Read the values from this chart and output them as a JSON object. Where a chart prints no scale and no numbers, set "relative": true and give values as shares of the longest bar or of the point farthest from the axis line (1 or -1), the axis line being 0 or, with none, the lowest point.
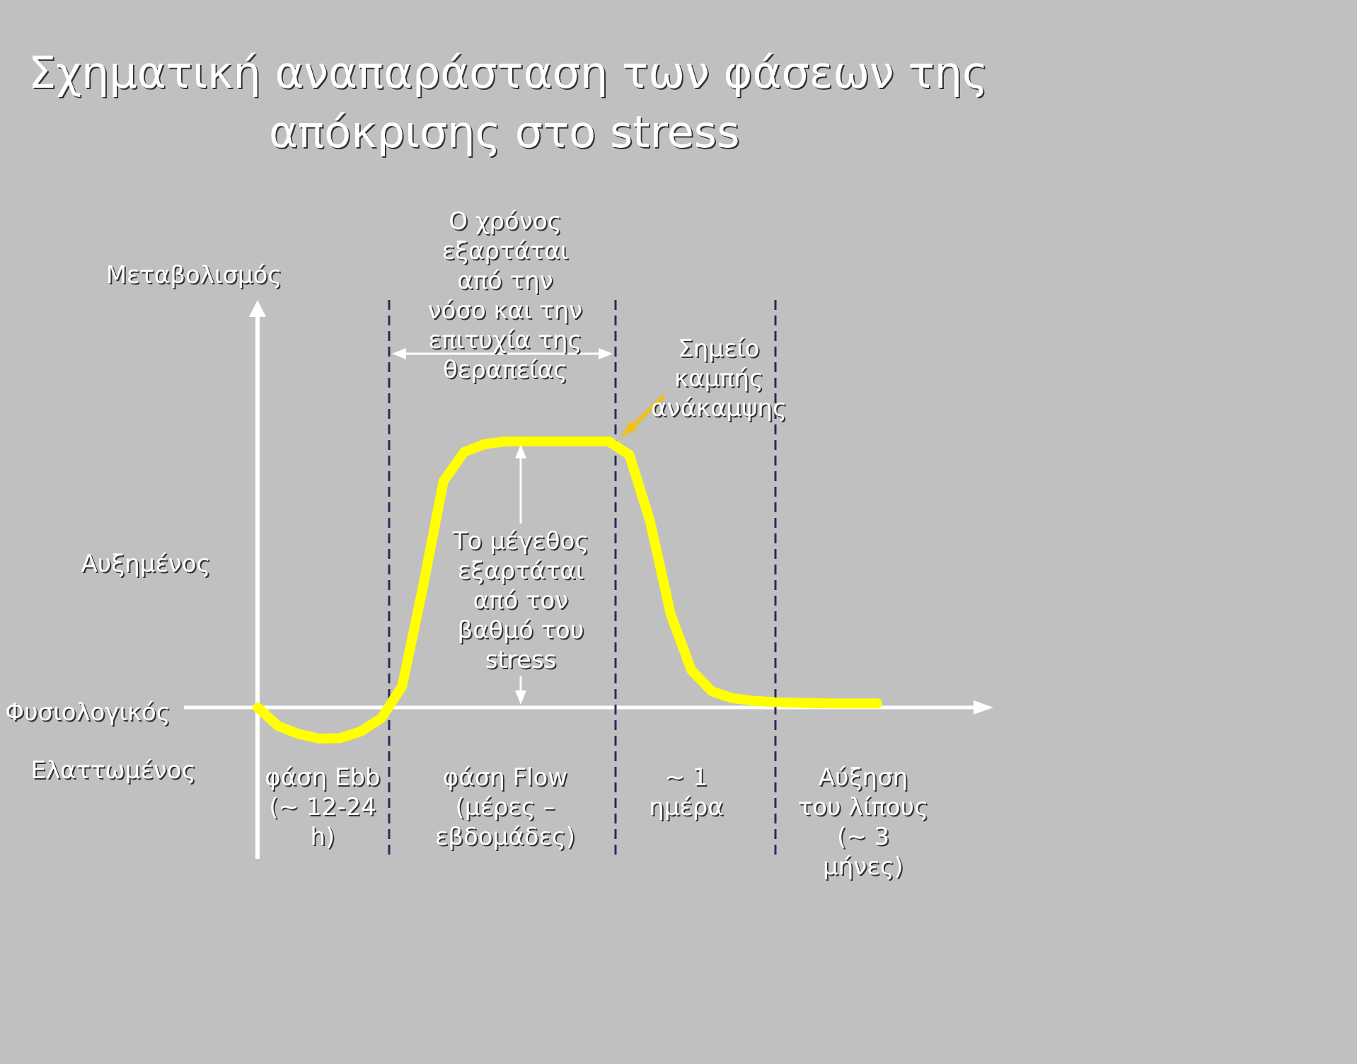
{
  "chart_data": {
    "type": "line",
    "relative": true,
    "title": "Σχηματική αναπαράσταση των φάσεων της\nαπόκρισης στο stress",
    "categories": [
      null,
      null,
      null,
      null,
      null,
      null,
      null,
      null,
      null,
      null,
      null,
      null,
      null,
      null,
      null,
      null,
      null,
      null,
      null,
      null,
      null,
      null,
      null,
      null,
      null,
      null,
      null,
      null,
      null,
      null,
      null
    ],
    "series": [
      {
        "color": "#ffff00",
        "values": [
          0,
          -0.07,
          -0.1,
          -0.117,
          -0.115,
          -0.09,
          -0.04,
          0.08,
          0.45,
          0.85,
          0.96,
          0.99,
          1,
          1,
          1,
          1,
          1,
          1,
          0.95,
          0.7,
          0.35,
          0.14,
          0.06,
          0.035,
          0.025,
          0.02,
          0.018,
          0.016,
          0.015,
          0.015,
          0.015
        ]
      }
    ],
    "annotations": [
      "Ο χρόνος\nεξαρτάται\nαπό την\nνόσο και την\nεπιτυχία της\nθεραπείας",
      "Σημείο\nκαμπής\nανάκαμψης",
      "Το μέγεθος\nεξαρτάται\nαπό τον\nβαθμό του\nstress",
      "Αυξημένος",
      "Φυσιολογικός",
      "Ελαττωμένος",
      "φάση Ebb\n(~ 12-24\nh)",
      "φάση Flow\n(μέρες –\nεβδομάδες)",
      "~ 1\nημέρα",
      "Αύξηση\nτου λίπους\n(~ 3\nμήνες)",
      "Μεταβολισμός"
    ]
  }
}
